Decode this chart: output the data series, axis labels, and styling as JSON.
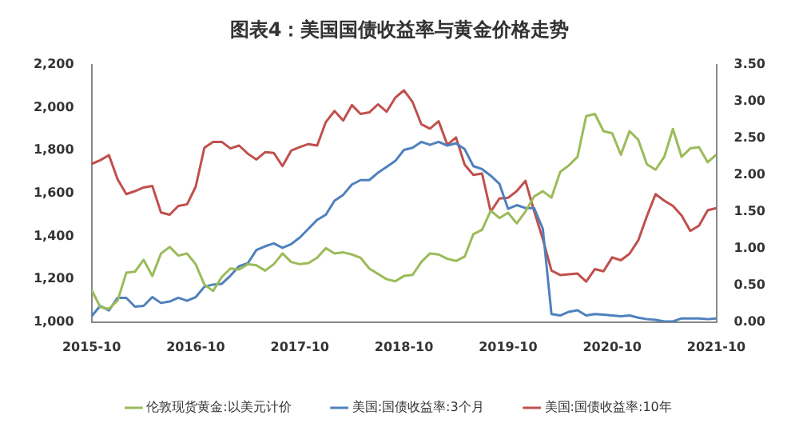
{
  "chart_data": {
    "type": "line",
    "title": "图表4：美国国债收益率与黄金价格走势",
    "x": [
      "2015-10",
      "2015-11",
      "2015-12",
      "2016-01",
      "2016-02",
      "2016-03",
      "2016-04",
      "2016-05",
      "2016-06",
      "2016-07",
      "2016-08",
      "2016-09",
      "2016-10",
      "2016-11",
      "2016-12",
      "2017-01",
      "2017-02",
      "2017-03",
      "2017-04",
      "2017-05",
      "2017-06",
      "2017-07",
      "2017-08",
      "2017-09",
      "2017-10",
      "2017-11",
      "2017-12",
      "2018-01",
      "2018-02",
      "2018-03",
      "2018-04",
      "2018-05",
      "2018-06",
      "2018-07",
      "2018-08",
      "2018-09",
      "2018-10",
      "2018-11",
      "2018-12",
      "2019-01",
      "2019-02",
      "2019-03",
      "2019-04",
      "2019-05",
      "2019-06",
      "2019-07",
      "2019-08",
      "2019-09",
      "2019-10",
      "2019-11",
      "2019-12",
      "2020-01",
      "2020-02",
      "2020-03",
      "2020-04",
      "2020-05",
      "2020-06",
      "2020-07",
      "2020-08",
      "2020-09",
      "2020-10",
      "2020-11",
      "2020-12",
      "2021-01",
      "2021-02",
      "2021-03",
      "2021-04",
      "2021-05",
      "2021-06",
      "2021-07",
      "2021-08",
      "2021-09",
      "2021-10"
    ],
    "series": [
      {
        "name": "伦敦现货黄金:以美元计价",
        "color": "#9bbb59",
        "values": [
          1150,
          1070,
          1062,
          1100,
          1230,
          1235,
          1290,
          1215,
          1320,
          1350,
          1310,
          1320,
          1270,
          1175,
          1145,
          1210,
          1250,
          1245,
          1270,
          1265,
          1240,
          1270,
          1320,
          1280,
          1270,
          1275,
          1300,
          1345,
          1320,
          1325,
          1315,
          1300,
          1250,
          1225,
          1200,
          1190,
          1215,
          1220,
          1280,
          1320,
          1315,
          1295,
          1285,
          1305,
          1410,
          1430,
          1520,
          1485,
          1510,
          1460,
          1515,
          1585,
          1610,
          1580,
          1700,
          1730,
          1770,
          1960,
          1970,
          1890,
          1880,
          1780,
          1890,
          1850,
          1735,
          1710,
          1770,
          1900,
          1770,
          1810,
          1815,
          1745,
          1780
        ]
      },
      {
        "name": "美国:国债收益率:3个月",
        "color": "#4f81bd",
        "axis": "y2",
        "values": [
          0.08,
          0.22,
          0.16,
          0.33,
          0.33,
          0.21,
          0.22,
          0.34,
          0.26,
          0.28,
          0.33,
          0.29,
          0.34,
          0.48,
          0.51,
          0.52,
          0.63,
          0.76,
          0.8,
          0.98,
          1.03,
          1.07,
          1.01,
          1.06,
          1.15,
          1.27,
          1.39,
          1.46,
          1.65,
          1.73,
          1.87,
          1.93,
          1.93,
          2.03,
          2.11,
          2.19,
          2.34,
          2.37,
          2.45,
          2.41,
          2.45,
          2.4,
          2.43,
          2.35,
          2.12,
          2.08,
          1.99,
          1.88,
          1.54,
          1.59,
          1.55,
          1.55,
          1.27,
          0.11,
          0.09,
          0.14,
          0.16,
          0.09,
          0.11,
          0.1,
          0.09,
          0.08,
          0.09,
          0.06,
          0.04,
          0.03,
          0.01,
          0.01,
          0.05,
          0.05,
          0.05,
          0.04,
          0.05
        ]
      },
      {
        "name": "美国:国债收益率:10年",
        "color": "#c0504d",
        "axis": "y2",
        "values": [
          2.15,
          2.2,
          2.27,
          1.94,
          1.74,
          1.78,
          1.83,
          1.85,
          1.49,
          1.46,
          1.58,
          1.6,
          1.84,
          2.37,
          2.45,
          2.45,
          2.36,
          2.4,
          2.29,
          2.21,
          2.31,
          2.3,
          2.12,
          2.33,
          2.38,
          2.42,
          2.4,
          2.72,
          2.87,
          2.74,
          2.95,
          2.83,
          2.85,
          2.96,
          2.86,
          3.05,
          3.15,
          2.99,
          2.69,
          2.63,
          2.73,
          2.41,
          2.51,
          2.14,
          2.0,
          2.02,
          1.5,
          1.68,
          1.69,
          1.78,
          1.92,
          1.51,
          1.13,
          0.7,
          0.64,
          0.65,
          0.66,
          0.55,
          0.72,
          0.69,
          0.88,
          0.84,
          0.93,
          1.11,
          1.44,
          1.74,
          1.65,
          1.58,
          1.45,
          1.24,
          1.31,
          1.52,
          1.55
        ]
      }
    ],
    "xlim": [
      "2015-10",
      "2021-10"
    ],
    "xticks": [
      "2015-10",
      "2016-10",
      "2017-10",
      "2018-10",
      "2019-10",
      "2020-10",
      "2021-10"
    ],
    "ylim": [
      1000,
      2200
    ],
    "yticks": [
      {
        "value": 1000,
        "label": "1,000"
      },
      {
        "value": 1200,
        "label": "1,200"
      },
      {
        "value": 1400,
        "label": "1,400"
      },
      {
        "value": 1600,
        "label": "1,600"
      },
      {
        "value": 1800,
        "label": "1,800"
      },
      {
        "value": 2000,
        "label": "2,000"
      },
      {
        "value": 2200,
        "label": "2,200"
      }
    ],
    "y2lim": [
      0,
      3.5
    ],
    "y2ticks": [
      {
        "value": 0,
        "label": "0.00"
      },
      {
        "value": 0.5,
        "label": "0.50"
      },
      {
        "value": 1,
        "label": "1.00"
      },
      {
        "value": 1.5,
        "label": "1.50"
      },
      {
        "value": 2,
        "label": "2.00"
      },
      {
        "value": 2.5,
        "label": "2.50"
      },
      {
        "value": 3,
        "label": "3.00"
      },
      {
        "value": 3.5,
        "label": "3.50"
      }
    ],
    "grid": false,
    "legend": "bottom",
    "marker": "none",
    "line_style": "solid"
  }
}
